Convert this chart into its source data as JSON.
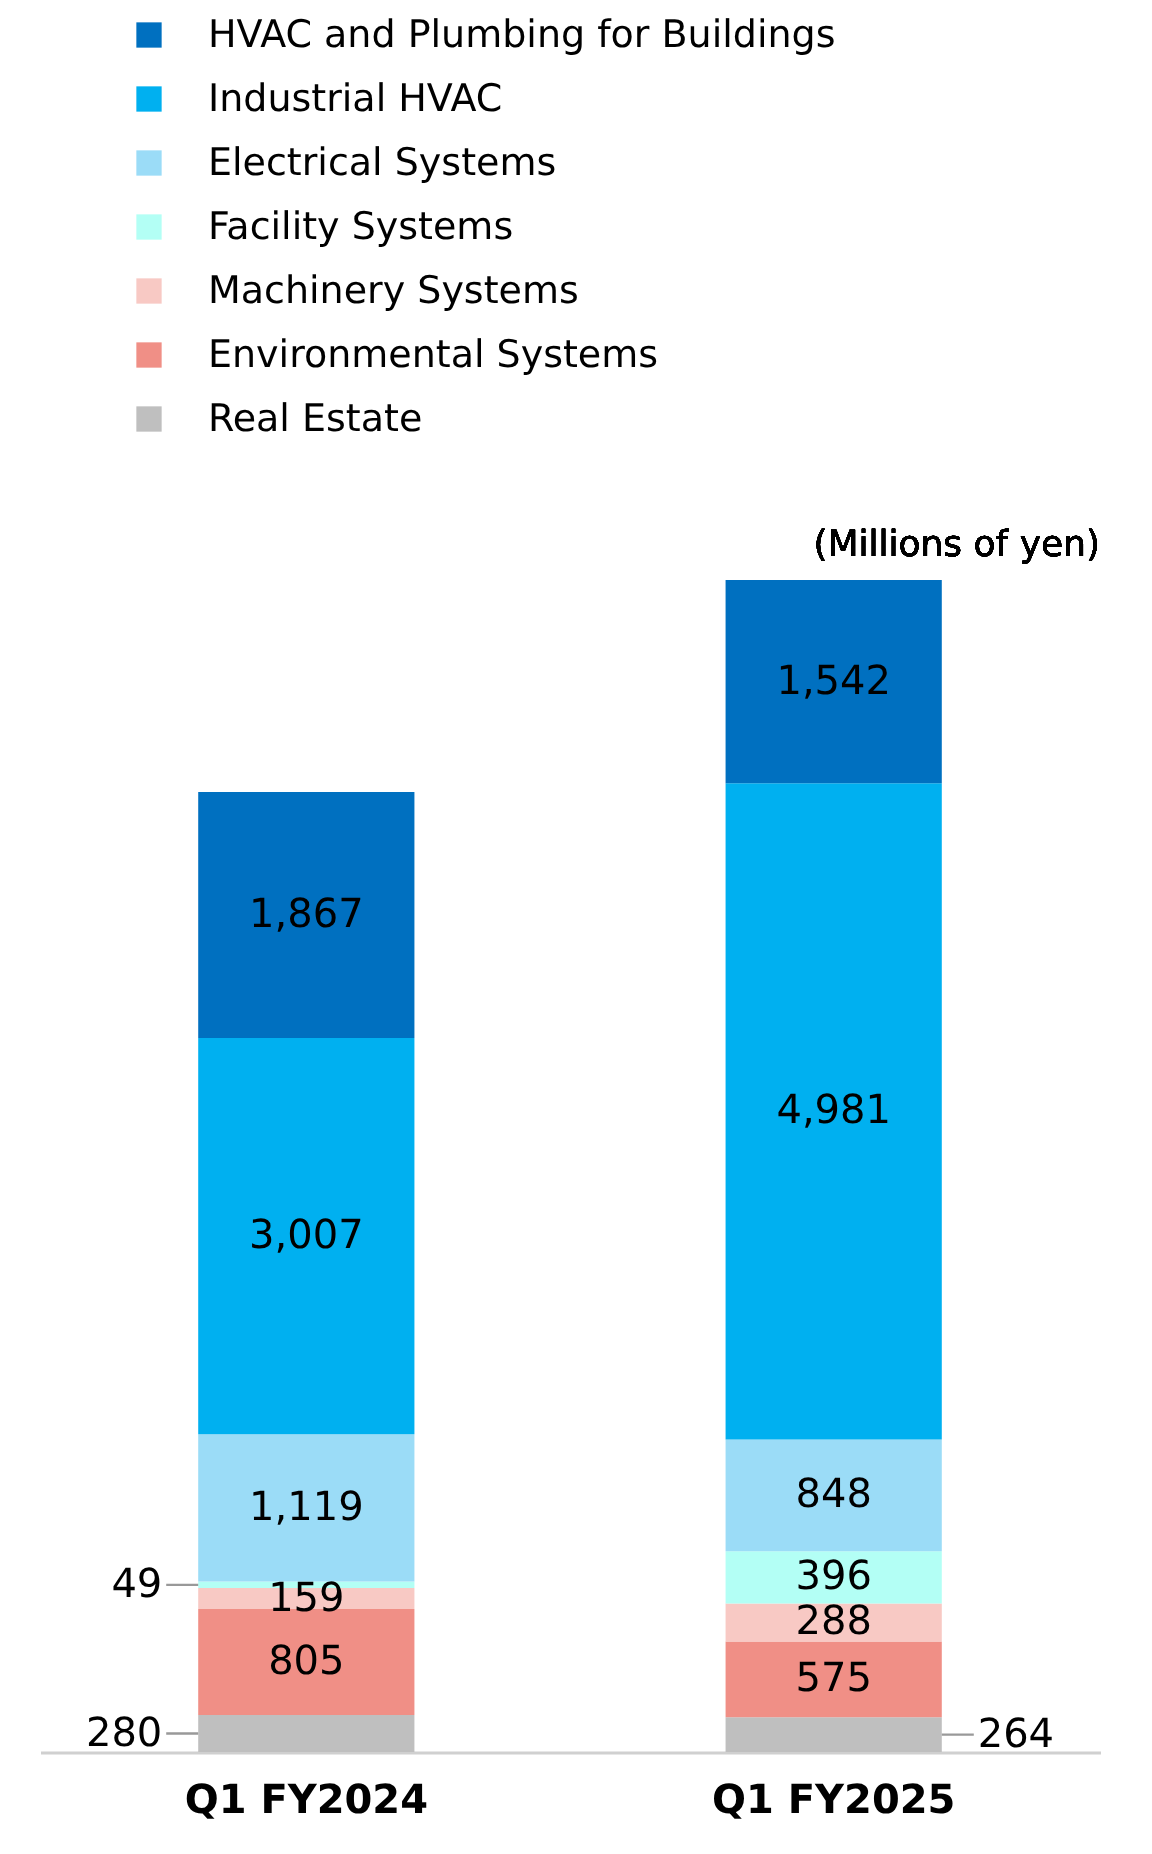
{
  "chart_data": {
    "type": "bar",
    "stacked": true,
    "data_labels": true,
    "legend": "top",
    "categories": [
      "Q1 FY2024",
      "Q1 FY2025"
    ],
    "annotations": [
      "(Millions of yen)"
    ],
    "series": [
      {
        "name": "Real Estate",
        "color": "#bfbfbf",
        "values": [
          280,
          264
        ],
        "value_labels": [
          "280",
          "264"
        ]
      },
      {
        "name": "Environmental Systems",
        "color": "#f08f86",
        "values": [
          805,
          575
        ],
        "value_labels": [
          "805",
          "575"
        ]
      },
      {
        "name": "Machinery Systems",
        "color": "#f8c9c4",
        "values": [
          159,
          288
        ],
        "value_labels": [
          "159",
          "288"
        ]
      },
      {
        "name": "Facility Systems",
        "color": "#b3fff5",
        "values": [
          49,
          396
        ],
        "value_labels": [
          "49",
          "396"
        ]
      },
      {
        "name": "Electrical Systems",
        "color": "#9bdcf7",
        "values": [
          1119,
          848
        ],
        "value_labels": [
          "1,119",
          "848"
        ]
      },
      {
        "name": "Industrial HVAC",
        "color": "#00b0f0",
        "values": [
          3007,
          4981
        ],
        "value_labels": [
          "3,007",
          "4,981"
        ]
      },
      {
        "name": "HVAC and Plumbing for Buildings",
        "color": "#0070c0",
        "values": [
          1867,
          1542
        ],
        "value_labels": [
          "1,867",
          "1,542"
        ]
      }
    ]
  }
}
